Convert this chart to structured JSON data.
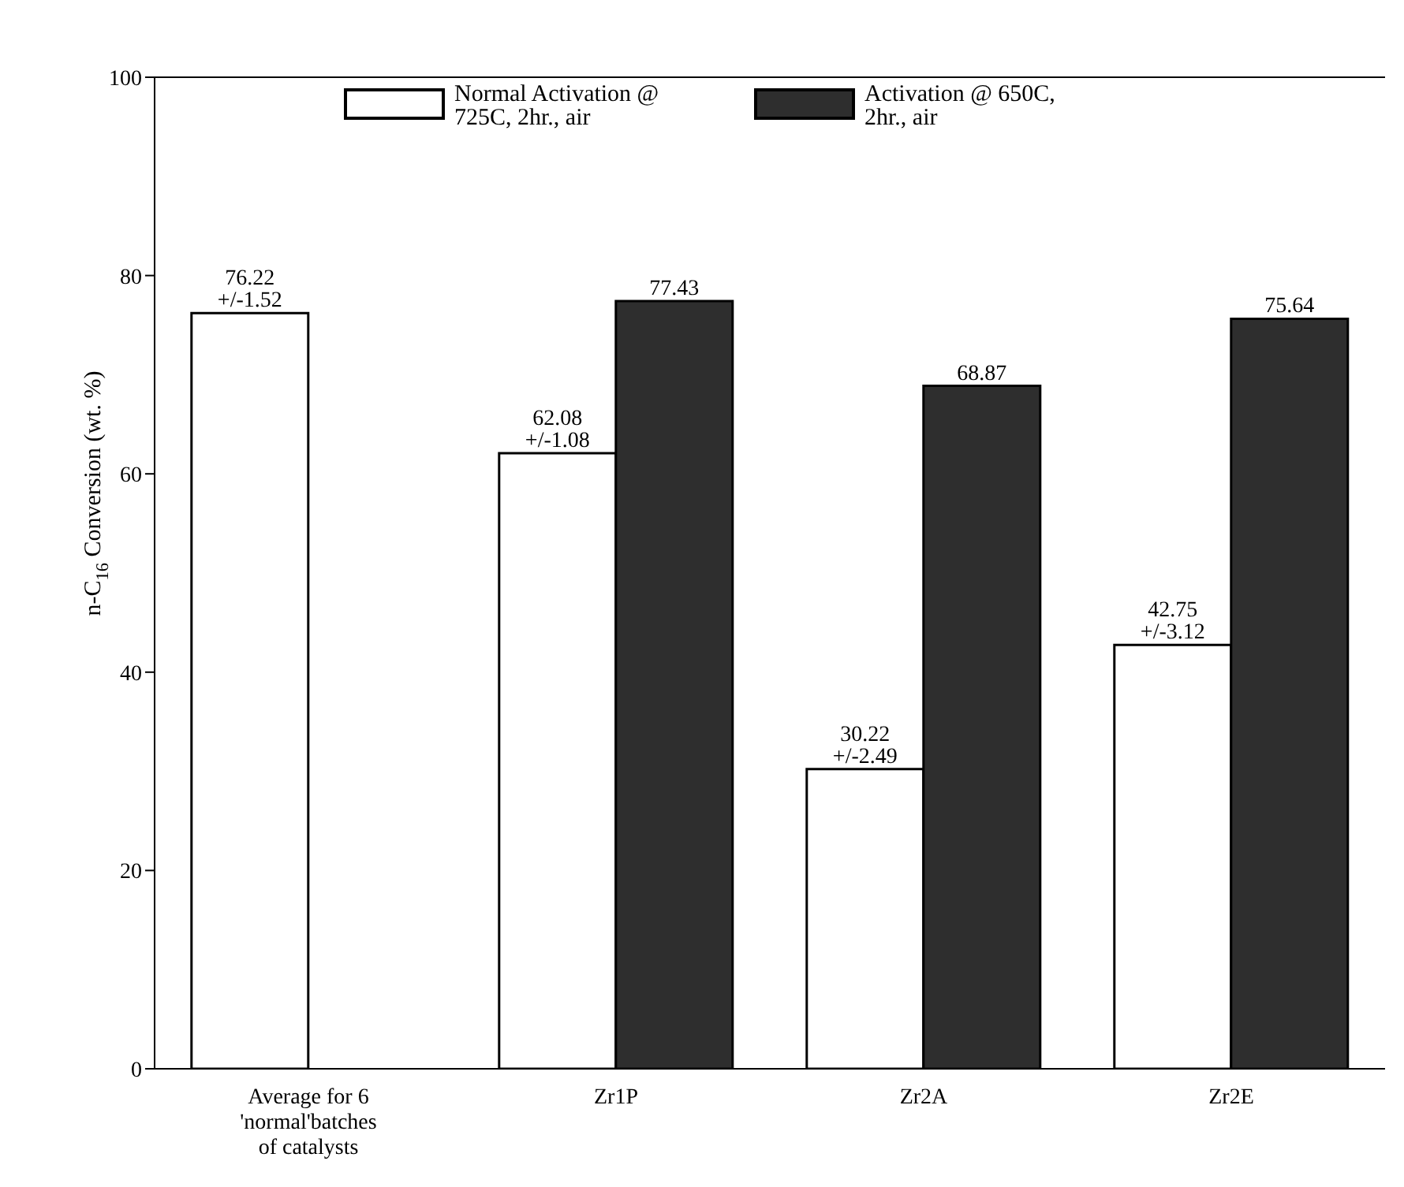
{
  "chart_data": {
    "type": "bar",
    "ylabel": "n-C$_{16}$ Conversion (wt. %)",
    "categories": [
      "Average for 6 'normal'batches of catalysts",
      "Zr1P",
      "Zr2A",
      "Zr2E"
    ],
    "series": [
      {
        "name": "Normal Activation @ 725C, 2hr., air",
        "color": "#ffffff",
        "values": [
          76.22,
          62.08,
          30.22,
          42.75
        ],
        "value_labels": [
          "76.22\n+/-1.52",
          "62.08\n+/-1.08",
          "30.22\n+/-2.49",
          "42.75\n+/-3.12"
        ]
      },
      {
        "name": "Activation @ 650C, 2hr., air",
        "color": "#2e2e2e",
        "values": [
          null,
          77.43,
          68.87,
          75.64
        ],
        "value_labels": [
          null,
          "77.43",
          "68.87",
          "75.64"
        ]
      }
    ],
    "ylim": [
      0,
      100
    ],
    "yticks": [
      0,
      20,
      40,
      60,
      80,
      100
    ],
    "legend": "top"
  }
}
